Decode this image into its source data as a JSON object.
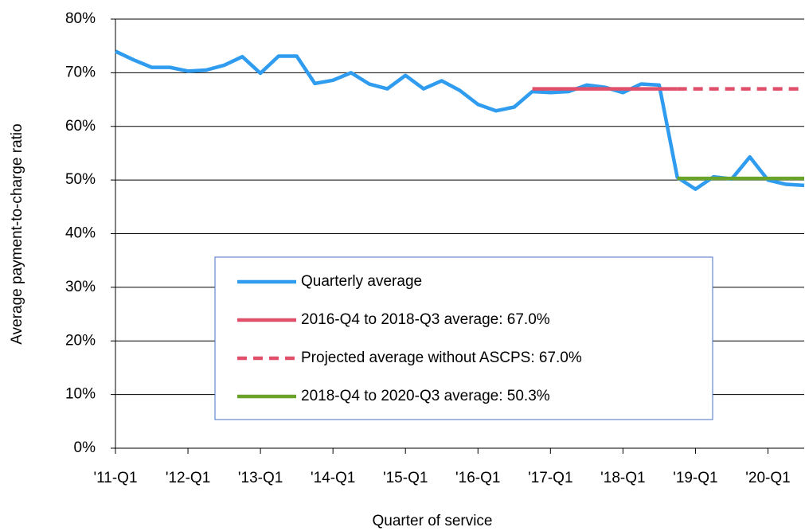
{
  "chart_data": {
    "type": "line",
    "x_label": "Quarter of service",
    "y_label": "Average payment-to-charge ratio",
    "categories": [
      "'11-Q1",
      null,
      null,
      null,
      "'12-Q1",
      null,
      null,
      null,
      "'13-Q1",
      null,
      null,
      null,
      "'14-Q1",
      null,
      null,
      null,
      "'15-Q1",
      null,
      null,
      null,
      "'16-Q1",
      null,
      null,
      null,
      "'17-Q1",
      null,
      null,
      null,
      "'18-Q1",
      null,
      null,
      null,
      "'19-Q1",
      null,
      null,
      null,
      "'20-Q1",
      null,
      null
    ],
    "ylim": [
      0,
      80
    ],
    "yticks": [
      {
        "value": 0,
        "label": "0%"
      },
      {
        "value": 10,
        "label": "10%"
      },
      {
        "value": 20,
        "label": "20%"
      },
      {
        "value": 30,
        "label": "30%"
      },
      {
        "value": 40,
        "label": "40%"
      },
      {
        "value": 50,
        "label": "50%"
      },
      {
        "value": 60,
        "label": "60%"
      },
      {
        "value": 70,
        "label": "70%"
      },
      {
        "value": 80,
        "label": "80%"
      }
    ],
    "grid": true,
    "series": [
      {
        "name": "Quarterly average",
        "color": "#2f9cf0",
        "dash": false,
        "values": [
          74.0,
          72.4,
          71.0,
          71.0,
          70.3,
          70.5,
          71.4,
          73.0,
          69.9,
          73.1,
          73.1,
          68.0,
          68.6,
          70.0,
          67.9,
          67.0,
          69.5,
          67.0,
          68.5,
          66.7,
          64.1,
          62.9,
          63.6,
          66.5,
          66.3,
          66.5,
          67.7,
          67.3,
          66.3,
          67.9,
          67.7,
          50.5,
          48.3,
          50.6,
          50.2,
          54.3,
          50.0,
          49.2,
          49.0
        ]
      },
      {
        "name": "2016-Q4 to 2018-Q3 average:  67.0%",
        "color": "#e0506a",
        "dash": false,
        "values": [
          null,
          null,
          null,
          null,
          null,
          null,
          null,
          null,
          null,
          null,
          null,
          null,
          null,
          null,
          null,
          null,
          null,
          null,
          null,
          null,
          null,
          null,
          null,
          67.0,
          67.0,
          67.0,
          67.0,
          67.0,
          67.0,
          67.0,
          67.0,
          67.0,
          null,
          null,
          null,
          null,
          null,
          null,
          null
        ]
      },
      {
        "name": "Projected average without ASCPS:  67.0%",
        "color": "#e0506a",
        "dash": true,
        "values": [
          null,
          null,
          null,
          null,
          null,
          null,
          null,
          null,
          null,
          null,
          null,
          null,
          null,
          null,
          null,
          null,
          null,
          null,
          null,
          null,
          null,
          null,
          null,
          null,
          null,
          null,
          null,
          null,
          null,
          null,
          null,
          67.0,
          67.0,
          67.0,
          67.0,
          67.0,
          67.0,
          67.0,
          67.0
        ]
      },
      {
        "name": "2018-Q4 to 2020-Q3 average:  50.3%",
        "color": "#6aa329",
        "dash": false,
        "values": [
          null,
          null,
          null,
          null,
          null,
          null,
          null,
          null,
          null,
          null,
          null,
          null,
          null,
          null,
          null,
          null,
          null,
          null,
          null,
          null,
          null,
          null,
          null,
          null,
          null,
          null,
          null,
          null,
          null,
          null,
          null,
          50.3,
          50.3,
          50.3,
          50.3,
          50.3,
          50.3,
          50.3,
          50.3
        ]
      }
    ]
  }
}
